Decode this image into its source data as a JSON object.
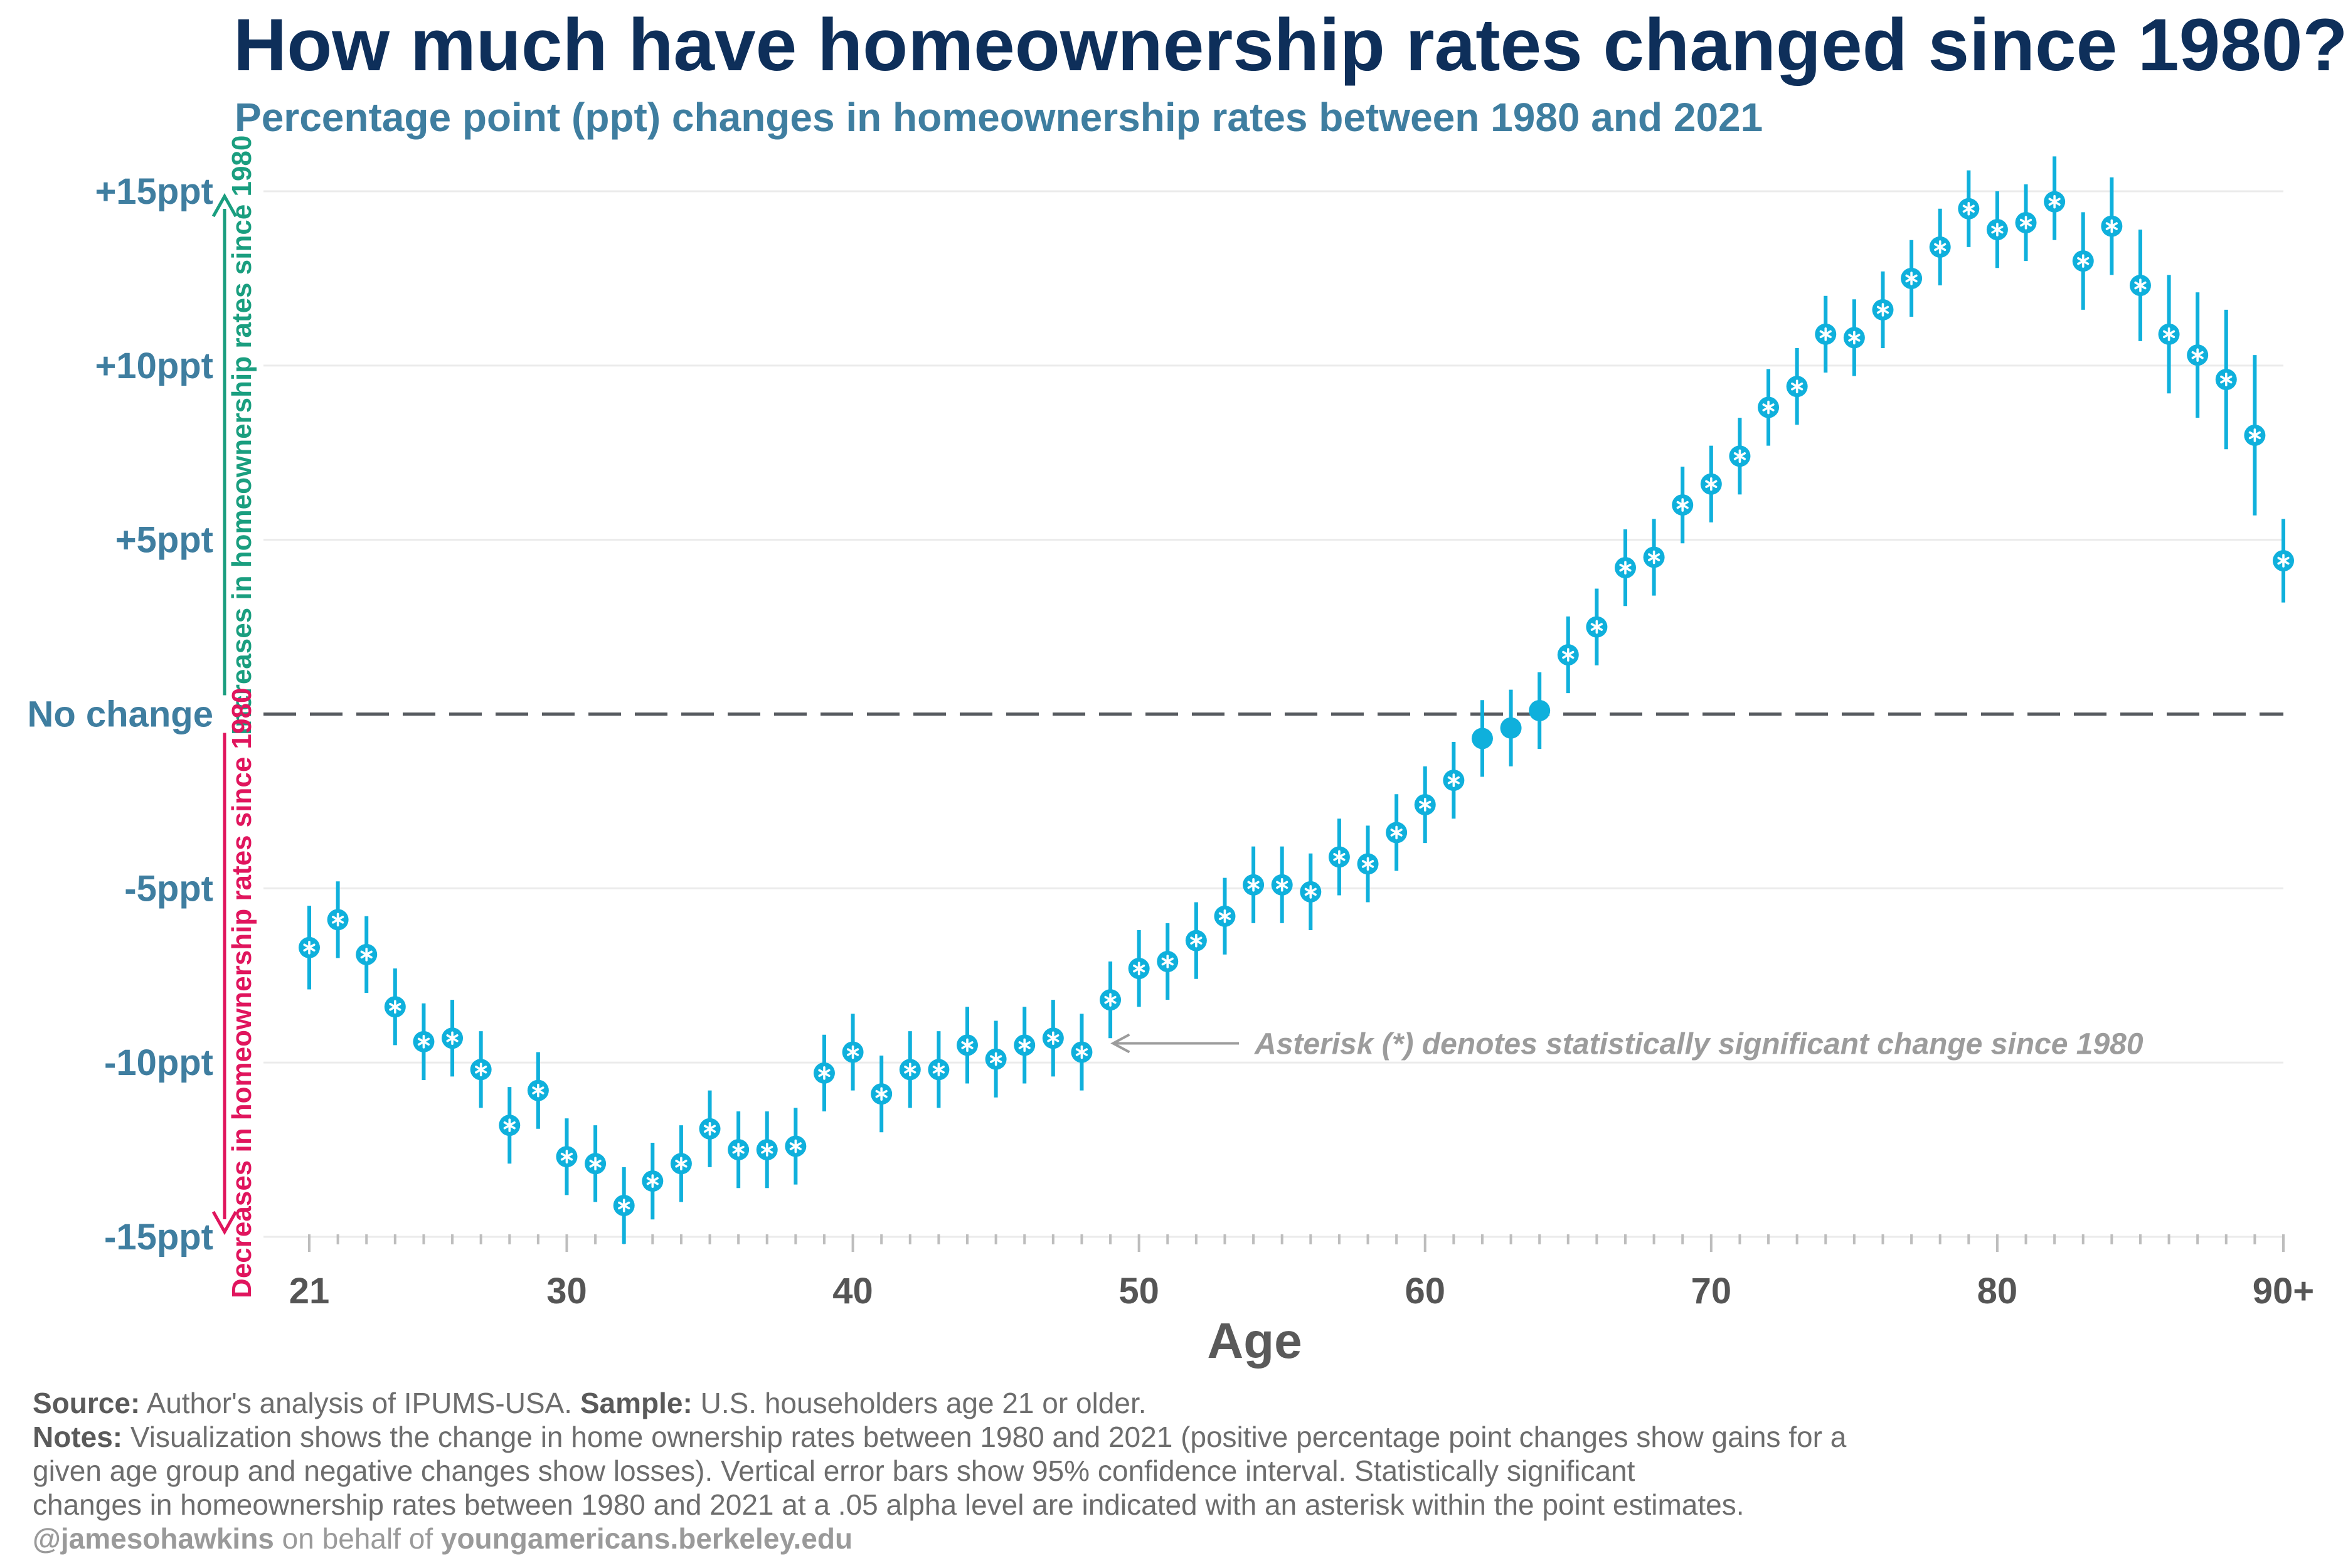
{
  "title": "How much have homeownership rates changed since 1980?",
  "subtitle": "Percentage point (ppt) changes in homeownership rates between 1980 and 2021",
  "colors": {
    "points": "#0fb0dc",
    "increase": "#1a9e7f",
    "decrease": "#e0155d",
    "ytick": "#3f7ea0",
    "title": "#0e2f5a",
    "zero_line": "#55595e",
    "annotation": "#9c9c9c",
    "grid": "#ebebeb"
  },
  "chart_data": {
    "type": "scatter",
    "xlabel": "Age",
    "ylabel": "",
    "xlim": [
      21,
      90
    ],
    "ylim": [
      -15,
      15
    ],
    "x_ticks": [
      21,
      30,
      40,
      50,
      60,
      70,
      80,
      90
    ],
    "x_tick_labels": [
      "21",
      "30",
      "40",
      "50",
      "60",
      "70",
      "80",
      "90+"
    ],
    "y_ticks": [
      15,
      10,
      5,
      0,
      -5,
      -10,
      -15
    ],
    "y_tick_labels": [
      "+15ppt",
      "+10ppt",
      "+5ppt",
      "No change",
      "-5ppt",
      "-10ppt",
      "-15ppt"
    ],
    "grid": true,
    "zero_line": "dashed",
    "error_bars": "95% confidence interval",
    "significance_marker": "asterisk",
    "increase_label": "Increases in homeownership rates since 1980",
    "decrease_label": "Decreases in homeownership rates since 1980",
    "annotation": "Asterisk (*) denotes statistically significant change since 1980",
    "annotation_target_age": 48,
    "points": [
      {
        "age": 21,
        "value": -6.7,
        "low": -7.9,
        "high": -5.5,
        "significant": true
      },
      {
        "age": 22,
        "value": -5.9,
        "low": -7.0,
        "high": -4.8,
        "significant": true
      },
      {
        "age": 23,
        "value": -6.9,
        "low": -8.0,
        "high": -5.8,
        "significant": true
      },
      {
        "age": 24,
        "value": -8.4,
        "low": -9.5,
        "high": -7.3,
        "significant": true
      },
      {
        "age": 25,
        "value": -9.4,
        "low": -10.5,
        "high": -8.3,
        "significant": true
      },
      {
        "age": 26,
        "value": -9.3,
        "low": -10.4,
        "high": -8.2,
        "significant": true
      },
      {
        "age": 27,
        "value": -10.2,
        "low": -11.3,
        "high": -9.1,
        "significant": true
      },
      {
        "age": 28,
        "value": -11.8,
        "low": -12.9,
        "high": -10.7,
        "significant": true
      },
      {
        "age": 29,
        "value": -10.8,
        "low": -11.9,
        "high": -9.7,
        "significant": true
      },
      {
        "age": 30,
        "value": -12.7,
        "low": -13.8,
        "high": -11.6,
        "significant": true
      },
      {
        "age": 31,
        "value": -12.9,
        "low": -14.0,
        "high": -11.8,
        "significant": true
      },
      {
        "age": 32,
        "value": -14.1,
        "low": -15.2,
        "high": -13.0,
        "significant": true
      },
      {
        "age": 33,
        "value": -13.4,
        "low": -14.5,
        "high": -12.3,
        "significant": true
      },
      {
        "age": 34,
        "value": -12.9,
        "low": -14.0,
        "high": -11.8,
        "significant": true
      },
      {
        "age": 35,
        "value": -11.9,
        "low": -13.0,
        "high": -10.8,
        "significant": true
      },
      {
        "age": 36,
        "value": -12.5,
        "low": -13.6,
        "high": -11.4,
        "significant": true
      },
      {
        "age": 37,
        "value": -12.5,
        "low": -13.6,
        "high": -11.4,
        "significant": true
      },
      {
        "age": 38,
        "value": -12.4,
        "low": -13.5,
        "high": -11.3,
        "significant": true
      },
      {
        "age": 39,
        "value": -10.3,
        "low": -11.4,
        "high": -9.2,
        "significant": true
      },
      {
        "age": 40,
        "value": -9.7,
        "low": -10.8,
        "high": -8.6,
        "significant": true
      },
      {
        "age": 41,
        "value": -10.9,
        "low": -12.0,
        "high": -9.8,
        "significant": true
      },
      {
        "age": 42,
        "value": -10.2,
        "low": -11.3,
        "high": -9.1,
        "significant": true
      },
      {
        "age": 43,
        "value": -10.2,
        "low": -11.3,
        "high": -9.1,
        "significant": true
      },
      {
        "age": 44,
        "value": -9.5,
        "low": -10.6,
        "high": -8.4,
        "significant": true
      },
      {
        "age": 45,
        "value": -9.9,
        "low": -11.0,
        "high": -8.8,
        "significant": true
      },
      {
        "age": 46,
        "value": -9.5,
        "low": -10.6,
        "high": -8.4,
        "significant": true
      },
      {
        "age": 47,
        "value": -9.3,
        "low": -10.4,
        "high": -8.2,
        "significant": true
      },
      {
        "age": 48,
        "value": -9.7,
        "low": -10.8,
        "high": -8.6,
        "significant": true
      },
      {
        "age": 49,
        "value": -8.2,
        "low": -9.3,
        "high": -7.1,
        "significant": true
      },
      {
        "age": 50,
        "value": -7.3,
        "low": -8.4,
        "high": -6.2,
        "significant": true
      },
      {
        "age": 51,
        "value": -7.1,
        "low": -8.2,
        "high": -6.0,
        "significant": true
      },
      {
        "age": 52,
        "value": -6.5,
        "low": -7.6,
        "high": -5.4,
        "significant": true
      },
      {
        "age": 53,
        "value": -5.8,
        "low": -6.9,
        "high": -4.7,
        "significant": true
      },
      {
        "age": 54,
        "value": -4.9,
        "low": -6.0,
        "high": -3.8,
        "significant": true
      },
      {
        "age": 55,
        "value": -4.9,
        "low": -6.0,
        "high": -3.8,
        "significant": true
      },
      {
        "age": 56,
        "value": -5.1,
        "low": -6.2,
        "high": -4.0,
        "significant": true
      },
      {
        "age": 57,
        "value": -4.1,
        "low": -5.2,
        "high": -3.0,
        "significant": true
      },
      {
        "age": 58,
        "value": -4.3,
        "low": -5.4,
        "high": -3.2,
        "significant": true
      },
      {
        "age": 59,
        "value": -3.4,
        "low": -4.5,
        "high": -2.3,
        "significant": true
      },
      {
        "age": 60,
        "value": -2.6,
        "low": -3.7,
        "high": -1.5,
        "significant": true
      },
      {
        "age": 61,
        "value": -1.9,
        "low": -3.0,
        "high": -0.8,
        "significant": true
      },
      {
        "age": 62,
        "value": -0.7,
        "low": -1.8,
        "high": 0.4,
        "significant": false
      },
      {
        "age": 63,
        "value": -0.4,
        "low": -1.5,
        "high": 0.7,
        "significant": false
      },
      {
        "age": 64,
        "value": 0.1,
        "low": -1.0,
        "high": 1.2,
        "significant": false
      },
      {
        "age": 65,
        "value": 1.7,
        "low": 0.6,
        "high": 2.8,
        "significant": true
      },
      {
        "age": 66,
        "value": 2.5,
        "low": 1.4,
        "high": 3.6,
        "significant": true
      },
      {
        "age": 67,
        "value": 4.2,
        "low": 3.1,
        "high": 5.3,
        "significant": true
      },
      {
        "age": 68,
        "value": 4.5,
        "low": 3.4,
        "high": 5.6,
        "significant": true
      },
      {
        "age": 69,
        "value": 6.0,
        "low": 4.9,
        "high": 7.1,
        "significant": true
      },
      {
        "age": 70,
        "value": 6.6,
        "low": 5.5,
        "high": 7.7,
        "significant": true
      },
      {
        "age": 71,
        "value": 7.4,
        "low": 6.3,
        "high": 8.5,
        "significant": true
      },
      {
        "age": 72,
        "value": 8.8,
        "low": 7.7,
        "high": 9.9,
        "significant": true
      },
      {
        "age": 73,
        "value": 9.4,
        "low": 8.3,
        "high": 10.5,
        "significant": true
      },
      {
        "age": 74,
        "value": 10.9,
        "low": 9.8,
        "high": 12.0,
        "significant": true
      },
      {
        "age": 75,
        "value": 10.8,
        "low": 9.7,
        "high": 11.9,
        "significant": true
      },
      {
        "age": 76,
        "value": 11.6,
        "low": 10.5,
        "high": 12.7,
        "significant": true
      },
      {
        "age": 77,
        "value": 12.5,
        "low": 11.4,
        "high": 13.6,
        "significant": true
      },
      {
        "age": 78,
        "value": 13.4,
        "low": 12.3,
        "high": 14.5,
        "significant": true
      },
      {
        "age": 79,
        "value": 14.5,
        "low": 13.4,
        "high": 15.6,
        "significant": true
      },
      {
        "age": 80,
        "value": 13.9,
        "low": 12.8,
        "high": 15.0,
        "significant": true
      },
      {
        "age": 81,
        "value": 14.1,
        "low": 13.0,
        "high": 15.2,
        "significant": true
      },
      {
        "age": 82,
        "value": 14.7,
        "low": 13.6,
        "high": 16.0,
        "significant": true
      },
      {
        "age": 83,
        "value": 13.0,
        "low": 11.6,
        "high": 14.4,
        "significant": true
      },
      {
        "age": 84,
        "value": 14.0,
        "low": 12.6,
        "high": 15.4,
        "significant": true
      },
      {
        "age": 85,
        "value": 12.3,
        "low": 10.7,
        "high": 13.9,
        "significant": true
      },
      {
        "age": 86,
        "value": 10.9,
        "low": 9.2,
        "high": 12.6,
        "significant": true
      },
      {
        "age": 87,
        "value": 10.3,
        "low": 8.5,
        "high": 12.1,
        "significant": true
      },
      {
        "age": 88,
        "value": 9.6,
        "low": 7.6,
        "high": 11.6,
        "significant": true
      },
      {
        "age": 89,
        "value": 8.0,
        "low": 5.7,
        "high": 10.3,
        "significant": true
      },
      {
        "age": 90,
        "value": 4.4,
        "low": 3.2,
        "high": 5.6,
        "significant": true
      }
    ]
  },
  "footer": {
    "source_label": "Source:",
    "source_text": " Author's analysis of IPUMS-USA. ",
    "sample_label": "Sample:",
    "sample_text": " U.S. householders age 21 or older.",
    "notes_label": "Notes:",
    "notes_line1": " Visualization shows the change in home ownership rates between 1980 and 2021 (positive percentage point changes show gains for a",
    "notes_line2": "given age group and negative changes show losses). Vertical error bars show 95% confidence interval. Statistically significant",
    "notes_line3": "changes in homeownership rates between 1980 and 2021 at a .05 alpha level are indicated with an asterisk within the point estimates.",
    "credit_handle": "@jamesohawkins",
    "credit_middle": " on behalf of ",
    "credit_site": "youngamericans.berkeley.edu"
  }
}
